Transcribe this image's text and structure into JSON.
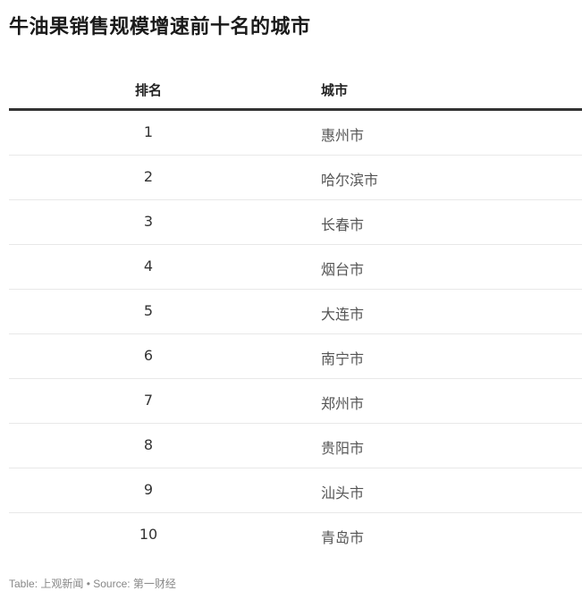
{
  "title": "牛油果销售规模增速前十名的城市",
  "table": {
    "headers": [
      "排名",
      "城市"
    ],
    "rows": [
      [
        "1",
        "惠州市"
      ],
      [
        "2",
        "哈尔滨市"
      ],
      [
        "3",
        "长春市"
      ],
      [
        "4",
        "烟台市"
      ],
      [
        "5",
        "大连市"
      ],
      [
        "6",
        "南宁市"
      ],
      [
        "7",
        "郑州市"
      ],
      [
        "8",
        "贵阳市"
      ],
      [
        "9",
        "汕头市"
      ],
      [
        "10",
        "青岛市"
      ]
    ]
  },
  "footer": "Table: 上观新闻 • Source: 第一财经"
}
